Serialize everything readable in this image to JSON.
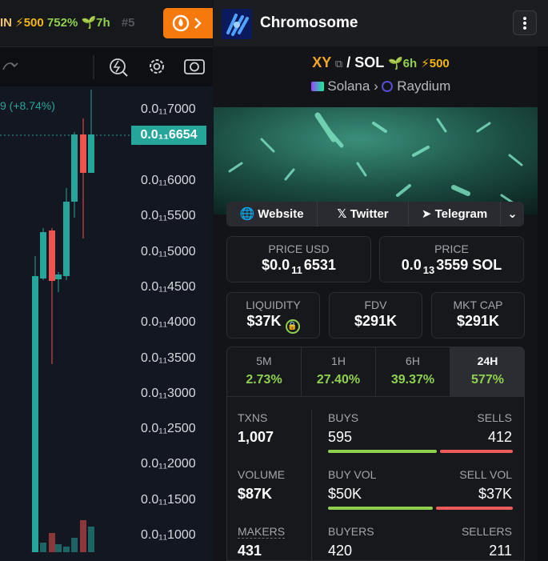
{
  "top_bar": {
    "ticker": "IN",
    "boosts": "500",
    "change": "752%",
    "age": "7h",
    "rank": "#5"
  },
  "chart": {
    "change_label": "9 (+8.74%)",
    "current_price": "0.0₁₁6654",
    "price_ticks": [
      "0.0₁₁7000",
      "0.0₁₁6000",
      "0.0₁₁5500",
      "0.0₁₁5000",
      "0.0₁₁4500",
      "0.0₁₁4000",
      "0.0₁₁3500",
      "0.0₁₁3000",
      "0.0₁₁2500",
      "0.0₁₁2000",
      "0.0₁₁1500",
      "0.0₁₁1000"
    ]
  },
  "header": {
    "name": "Chromosome"
  },
  "pair": {
    "base": "XY",
    "separator": "/",
    "quote": "SOL",
    "age": "6h",
    "boosts": "500",
    "chain": "Solana",
    "dex": "Raydium"
  },
  "links": [
    "Website",
    "Twitter",
    "Telegram"
  ],
  "price_usd": {
    "label": "PRICE USD",
    "prefix": "$0.0",
    "zeros": "11",
    "digits": "6531"
  },
  "price_native": {
    "label": "PRICE",
    "prefix": "0.0",
    "zeros": "13",
    "digits": "3559 SOL"
  },
  "metrics": [
    {
      "label": "LIQUIDITY",
      "value": "$37K"
    },
    {
      "label": "FDV",
      "value": "$291K"
    },
    {
      "label": "MKT CAP",
      "value": "$291K"
    }
  ],
  "timeframes": [
    {
      "label": "5M",
      "change": "2.73%"
    },
    {
      "label": "1H",
      "change": "27.40%"
    },
    {
      "label": "6H",
      "change": "39.37%"
    },
    {
      "label": "24H",
      "change": "577%"
    }
  ],
  "stats": {
    "txns": {
      "label": "TXNS",
      "value": "1,007"
    },
    "buys": {
      "label": "BUYS",
      "value": "595"
    },
    "sells": {
      "label": "SELLS",
      "value": "412"
    },
    "volume": {
      "label": "VOLUME",
      "value": "$87K"
    },
    "buy_vol": {
      "label": "BUY VOL",
      "value": "$50K"
    },
    "sell_vol": {
      "label": "SELL VOL",
      "value": "$37K"
    },
    "makers": {
      "label": "MAKERS",
      "value": "431"
    },
    "buyers": {
      "label": "BUYERS",
      "value": "420"
    },
    "sellers": {
      "label": "SELLERS",
      "value": "211"
    }
  }
}
